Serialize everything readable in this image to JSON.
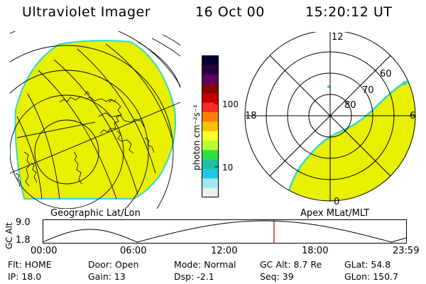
{
  "header": {
    "instrument": "Ultraviolet Imager",
    "date": "16 Oct 00",
    "time": "15:20:12 UT"
  },
  "left_panel": {
    "label": "Geographic Lat/Lon"
  },
  "right_panel": {
    "label": "Apex MLat/MLT",
    "mlt_labels": {
      "top": "12",
      "left": "18",
      "right": "6",
      "bottom": "0"
    },
    "lat_labels": [
      "60",
      "70",
      "80"
    ]
  },
  "colorbar": {
    "unit_label": "photon cm⁻²s⁻¹",
    "tick_labels": [
      "100",
      "10"
    ],
    "colors": [
      "#000033",
      "#2a0040",
      "#5a0060",
      "#8a0000",
      "#c00000",
      "#ff2a2a",
      "#ff8000",
      "#ffc000",
      "#ffff30",
      "#b8ff30",
      "#30e040",
      "#20c0a0",
      "#20c8e0",
      "#a0e8f0",
      "#e8f0f0"
    ]
  },
  "timeline": {
    "y_axis_title": "GC Alt",
    "y_ticks": [
      "9.0",
      "1.8"
    ],
    "x_ticks": [
      "00:00",
      "06:00",
      "12:00",
      "18:00",
      "23:59"
    ],
    "marker_color": "#cc0000"
  },
  "status": {
    "flt": "Flt: HOME",
    "ip": "IP: 18.0",
    "door": "Door: Open",
    "gain": "Gain: 13",
    "mode": "Mode: Normal",
    "dsp": "Dsp:   -2.1",
    "gc_alt": "GC Alt: 8.7 Re",
    "seq": "Seq: 39",
    "glat": "GLat:  54.8",
    "glon": "GLon: 150.7"
  },
  "colors": {
    "aurora_fill": "#e8f000",
    "edge_cyan": "#30d8d0",
    "background": "#ffffff"
  }
}
